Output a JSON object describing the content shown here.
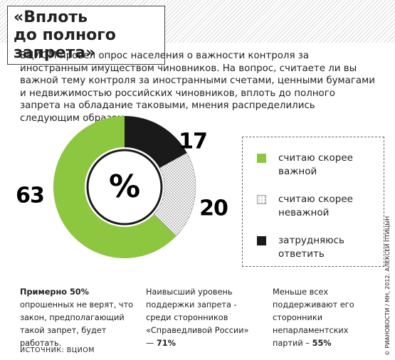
{
  "chart_data": {
    "type": "pie",
    "title": [
      "«Вплоть",
      "до полного запрета»"
    ],
    "subtitle": "ВЦИОМ провел опрос населения о важности контроля за иностранным имуществом  чиновников.  На вопрос, считаете ли вы важной тему контроля за  иностранными счетами, ценными бумагами и недвижимостью российских чиновников, вплоть до полного запрета на обладание таковыми, мнения распределились следующим образом:",
    "center_label": "%",
    "categories": [
      "считаю скорее важной",
      "считаю скорее неважной",
      "затрудняюсь ответить"
    ],
    "values": [
      63,
      20,
      17
    ],
    "colors": [
      "#8dc63f",
      "url(#dots)",
      "#1a1a1a"
    ],
    "notes": [
      [
        {
          "text": "Примерно 50%",
          "bold": true
        },
        {
          "text": " опрошенных не верят, что закон, предполагающий такой запрет, будет работать.",
          "bold": false
        }
      ],
      [
        {
          "text": "Наивысший уровень поддержки запрета - среди сторонников «Справедливой России» — ",
          "bold": false
        },
        {
          "text": "71%",
          "bold": true
        }
      ],
      [
        {
          "text": "Меньше всех поддерживают его сторонники непарламентских партий – ",
          "bold": false
        },
        {
          "text": "55%",
          "bold": true
        }
      ]
    ],
    "source": "ИСТОЧНИК: ВЦИОМ",
    "credit": "© РИАНОВОСТИ / МН, 2012. АЛЕКСЕЙ ПТИЦЫН"
  }
}
